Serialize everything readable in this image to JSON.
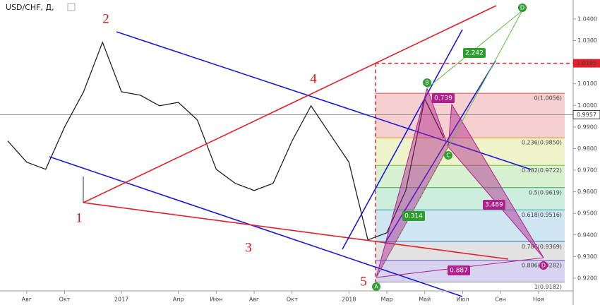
{
  "chart_data": {
    "type": "line",
    "title": "USD/CHF, Д,",
    "categories": [
      null,
      "Авг",
      null,
      "Окт",
      null,
      null,
      "2017",
      null,
      null,
      "Апр",
      null,
      "Июн",
      null,
      "Авг",
      null,
      "Окт",
      null,
      null,
      "2018",
      null,
      "Мар",
      null,
      "Май",
      null,
      "Июл",
      null,
      "Сен",
      null,
      "Ноя",
      null
    ],
    "series": [
      {
        "name": "USD/CHF",
        "color": "#222222",
        "values": [
          0.9835,
          0.9737,
          0.9704,
          0.99,
          1.0063,
          1.0292,
          1.0063,
          1.0047,
          0.9998,
          1.0014,
          0.9933,
          0.9704,
          0.9639,
          0.9606,
          0.9639,
          0.9835,
          0.9998,
          0.9867,
          0.9737,
          0.9377,
          0.941,
          0.9606,
          1.003,
          0.9851,
          null,
          null,
          null,
          null,
          null,
          null
        ]
      }
    ],
    "ylim": [
      0.9141,
      1.0488
    ],
    "yticks": [
      {
        "value": 0.92,
        "label": "0.9200"
      },
      {
        "value": 0.93,
        "label": "0.9300"
      },
      {
        "value": 0.94,
        "label": "0.9400"
      },
      {
        "value": 0.95,
        "label": "0.9500"
      },
      {
        "value": 0.96,
        "label": "0.9600"
      },
      {
        "value": 0.97,
        "label": "0.9700"
      },
      {
        "value": 0.98,
        "label": "0.9800"
      },
      {
        "value": 0.99,
        "label": "0.9900"
      },
      {
        "value": 1.0,
        "label": "1.0000"
      },
      {
        "value": 1.01,
        "label": "1.0100"
      },
      {
        "value": 1.02,
        "label": "1.0200"
      },
      {
        "value": 1.03,
        "label": "1.0300"
      },
      {
        "value": 1.04,
        "label": "1.0400"
      }
    ],
    "current_price": 0.9957,
    "target_price": 1.0195,
    "fib_levels": [
      {
        "value": 1.0056,
        "label": "0(1.0056)",
        "color": "#e05050",
        "fill": "#f6d0d0"
      },
      {
        "value": 0.985,
        "label": "0.236(0.9850)",
        "color": "#e08a2a",
        "fill": "#eef3c9"
      },
      {
        "value": 0.9722,
        "label": "0.382(0.9722)",
        "color": "#7cc04a",
        "fill": "#d7f0cf"
      },
      {
        "value": 0.9619,
        "label": "0.5(0.9619)",
        "color": "#3fae5a",
        "fill": "#cdeedd"
      },
      {
        "value": 0.9516,
        "label": "0.618(0.9516)",
        "color": "#2a9e9a",
        "fill": "#cde6f2"
      },
      {
        "value": 0.9369,
        "label": "0.786(0.9369)",
        "color": "#3a7ad0",
        "fill": "#e2e2e2"
      },
      {
        "value": 0.9282,
        "label": "0.886(0.9282)",
        "color": "#6a50c0",
        "fill": "#d7d3f0"
      },
      {
        "value": 0.9182,
        "label": "1(0.9182)",
        "color": "#888888",
        "fill": null
      }
    ],
    "wave_labels": [
      "1",
      "2",
      "3",
      "4",
      "5"
    ],
    "pattern_points": [
      "A",
      "B",
      "C",
      "D",
      "D"
    ],
    "pattern_ratios": [
      "2.242",
      "0.739",
      "0.314",
      "3.489",
      "0.887"
    ]
  }
}
